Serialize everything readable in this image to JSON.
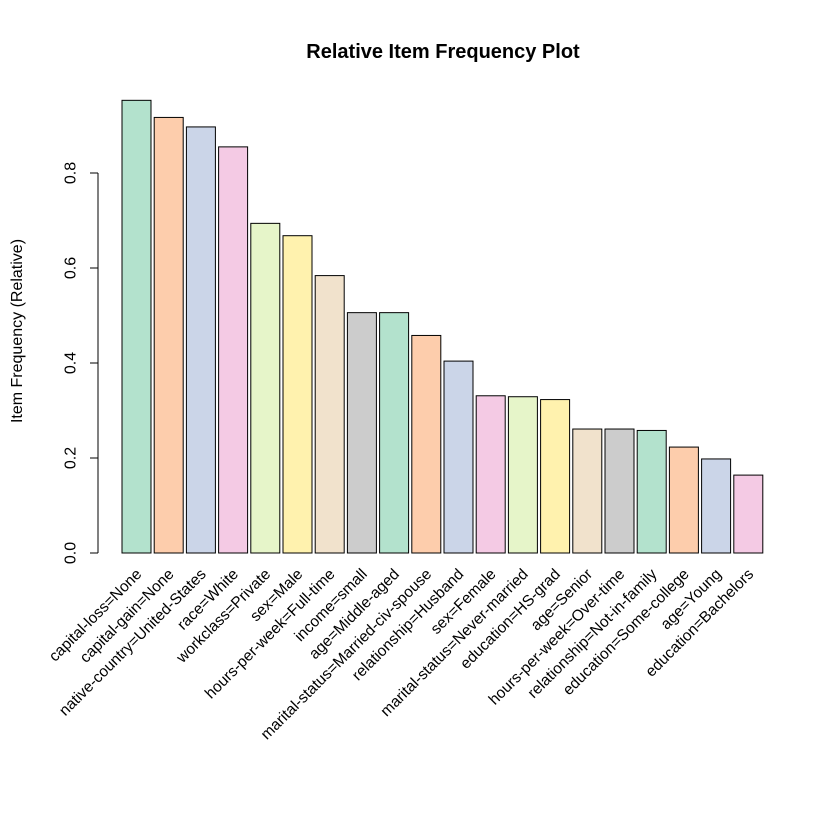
{
  "chart_data": {
    "type": "bar",
    "title": "Relative Item Frequency Plot",
    "xlabel": "",
    "ylabel": "Item Frequency (Relative)",
    "ylim": [
      0,
      0.96
    ],
    "yticks": [
      0.0,
      0.2,
      0.4,
      0.6,
      0.8
    ],
    "ytick_labels": [
      "0.0",
      "0.2",
      "0.4",
      "0.6",
      "0.8"
    ],
    "grid": false,
    "categories": [
      "capital-loss=None",
      "capital-gain=None",
      "native-country=United-States",
      "race=White",
      "workclass=Private",
      "sex=Male",
      "hours-per-week=Full-time",
      "income=small",
      "age=Middle-aged",
      "marital-status=Married-civ-spouse",
      "relationship=Husband",
      "sex=Female",
      "marital-status=Never-married",
      "education=HS-grad",
      "age=Senior",
      "hours-per-week=Over-time",
      "relationship=Not-in-family",
      "education=Some-college",
      "age=Young",
      "education=Bachelors"
    ],
    "values": [
      0.953,
      0.917,
      0.897,
      0.855,
      0.694,
      0.668,
      0.584,
      0.506,
      0.506,
      0.458,
      0.404,
      0.331,
      0.329,
      0.323,
      0.261,
      0.261,
      0.258,
      0.223,
      0.198,
      0.164
    ],
    "colors": [
      "#b3e2cd",
      "#fdcdac",
      "#cbd5e8",
      "#f4cae4",
      "#e6f5c9",
      "#fff2ae",
      "#f1e2cc",
      "#cccccc"
    ]
  }
}
